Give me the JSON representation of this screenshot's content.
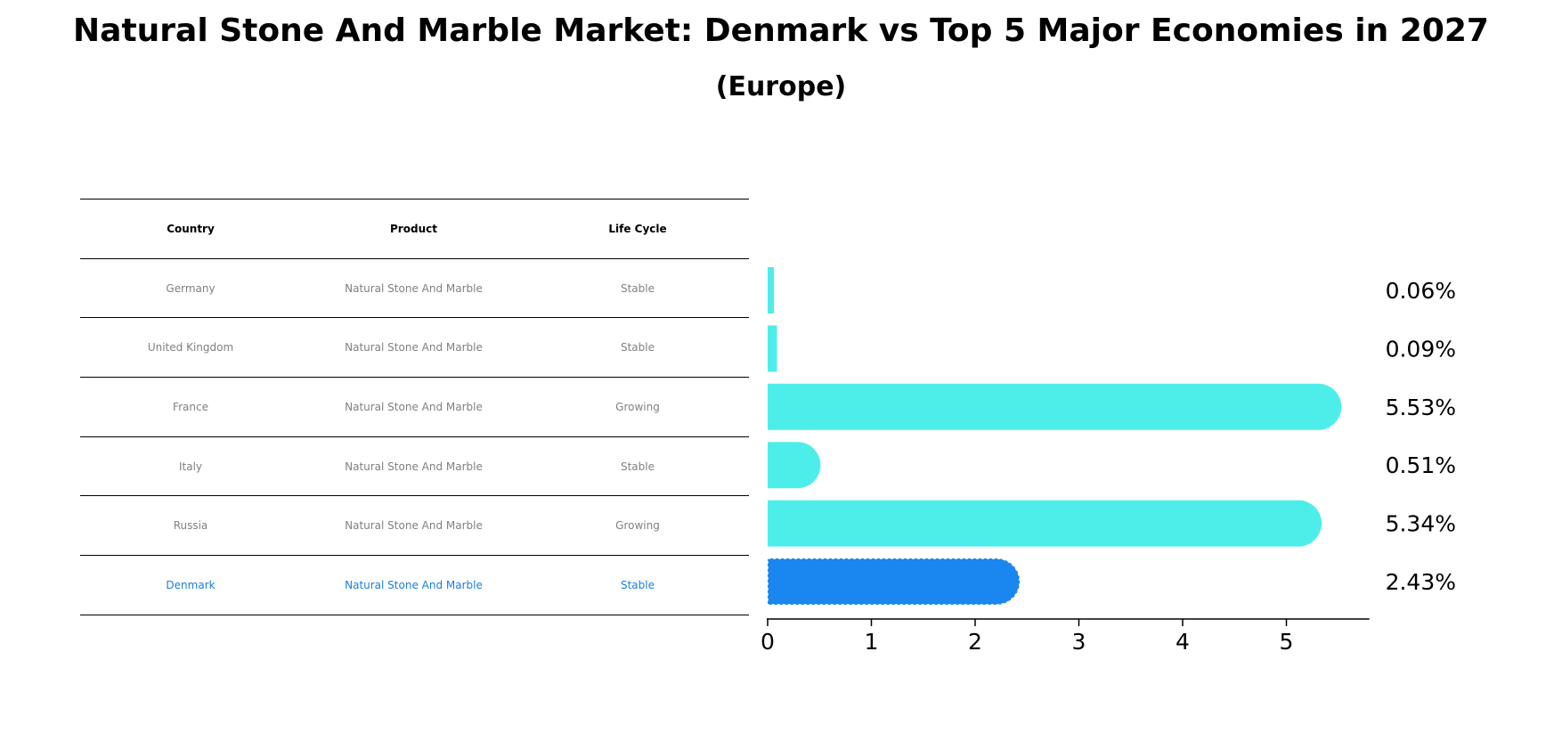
{
  "title": "Natural Stone And Marble Market: Denmark vs Top 5 Major Economies in 2027",
  "subtitle": "(Europe)",
  "table": {
    "headers": [
      "Country",
      "Product",
      "Life Cycle"
    ],
    "rows": [
      {
        "country": "Germany",
        "product": "Natural Stone And Marble",
        "life_cycle": "Stable"
      },
      {
        "country": "United Kingdom",
        "product": "Natural Stone And Marble",
        "life_cycle": "Stable"
      },
      {
        "country": "France",
        "product": "Natural Stone And Marble",
        "life_cycle": "Growing"
      },
      {
        "country": "Italy",
        "product": "Natural Stone And Marble",
        "life_cycle": "Stable"
      },
      {
        "country": "Russia",
        "product": "Natural Stone And Marble",
        "life_cycle": "Growing"
      },
      {
        "country": "Denmark",
        "product": "Natural Stone And Marble",
        "life_cycle": "Stable"
      }
    ]
  },
  "colors": {
    "bar": "#4deeea",
    "highlight": "#1a86f0",
    "highlight_text": "#1a7fd9",
    "muted_text": "#808080"
  },
  "chart_data": {
    "type": "bar",
    "orientation": "horizontal",
    "categories": [
      "Germany",
      "United Kingdom",
      "France",
      "Italy",
      "Russia",
      "Denmark"
    ],
    "values": [
      0.06,
      0.09,
      5.53,
      0.51,
      5.34,
      2.43
    ],
    "value_labels": [
      "0.06%",
      "0.09%",
      "5.53%",
      "0.51%",
      "5.34%",
      "2.43%"
    ],
    "highlight_category": "Denmark",
    "xlim": [
      0,
      5.8
    ],
    "xticks": [
      0,
      1,
      2,
      3,
      4,
      5
    ],
    "grid": false,
    "title": "",
    "xlabel": "",
    "ylabel": ""
  }
}
